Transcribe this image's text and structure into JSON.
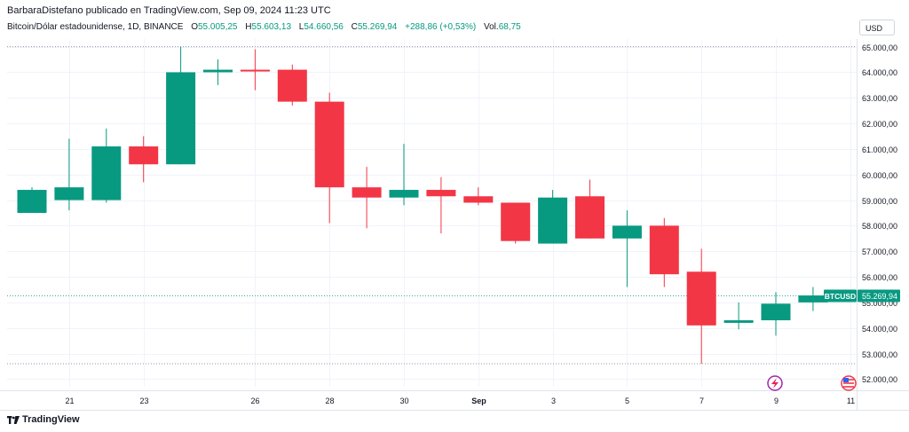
{
  "header": {
    "publisher": "BarbaraDistefano publicado en TradingView.com, Sep 09, 2024 11:23 UTC"
  },
  "legend": {
    "symbol": "Bitcoin/Dólar estadounidense, 1D, BINANCE",
    "open_label": "O",
    "open": "55.005,25",
    "high_label": "H",
    "high": "55.603,13",
    "low_label": "L",
    "low": "54.660,56",
    "close_label": "C",
    "close": "55.269,94",
    "change": "+288,86 (+0,53%)",
    "volume_label": "Vol.",
    "volume": "68,75"
  },
  "currency_button": "USD",
  "footer": {
    "brand": "TradingView"
  },
  "colors": {
    "up": "#089981",
    "down": "#f23645",
    "grid": "#f0f3fa",
    "axis_text": "#131722"
  },
  "chart_data": {
    "type": "candlestick",
    "symbol_tag": "BTCUSD",
    "last_price_label": "55.269,94",
    "ylim": [
      51700,
      65300
    ],
    "yticks": [
      {
        "value": 52000,
        "label": "52.000,00"
      },
      {
        "value": 53000,
        "label": "53.000,00"
      },
      {
        "value": 54000,
        "label": "54.000,00"
      },
      {
        "value": 55000,
        "label": "55.000,00"
      },
      {
        "value": 56000,
        "label": "56.000,00"
      },
      {
        "value": 57000,
        "label": "57.000,00"
      },
      {
        "value": 58000,
        "label": "58.000,00"
      },
      {
        "value": 59000,
        "label": "59.000,00"
      },
      {
        "value": 60000,
        "label": "60.000,00"
      },
      {
        "value": 61000,
        "label": "61.000,00"
      },
      {
        "value": 62000,
        "label": "62.000,00"
      },
      {
        "value": 63000,
        "label": "63.000,00"
      },
      {
        "value": 64000,
        "label": "64.000,00"
      },
      {
        "value": 65000,
        "label": "65.000,00"
      }
    ],
    "xticks": [
      {
        "index": 1,
        "label": "21"
      },
      {
        "index": 3,
        "label": "23"
      },
      {
        "index": 6,
        "label": "26"
      },
      {
        "index": 8,
        "label": "28"
      },
      {
        "index": 10,
        "label": "30"
      },
      {
        "index": 12,
        "label": "Sep"
      },
      {
        "index": 14,
        "label": "3"
      },
      {
        "index": 16,
        "label": "5"
      },
      {
        "index": 18,
        "label": "7"
      },
      {
        "index": 20,
        "label": "9"
      },
      {
        "index": 22,
        "label": "11"
      }
    ],
    "candles": [
      {
        "o": 58500,
        "h": 59500,
        "l": 58500,
        "c": 59400
      },
      {
        "o": 59000,
        "h": 61400,
        "l": 58600,
        "c": 59500
      },
      {
        "o": 59000,
        "h": 61800,
        "l": 58900,
        "c": 61100
      },
      {
        "o": 61100,
        "h": 61500,
        "l": 59700,
        "c": 60400
      },
      {
        "o": 60400,
        "h": 65000,
        "l": 60400,
        "c": 64000
      },
      {
        "o": 64000,
        "h": 64500,
        "l": 63500,
        "c": 64100
      },
      {
        "o": 64100,
        "h": 64900,
        "l": 63300,
        "c": 64050
      },
      {
        "o": 64100,
        "h": 64300,
        "l": 62700,
        "c": 62850
      },
      {
        "o": 62850,
        "h": 63200,
        "l": 58100,
        "c": 59500
      },
      {
        "o": 59500,
        "h": 60300,
        "l": 57900,
        "c": 59100
      },
      {
        "o": 59100,
        "h": 61200,
        "l": 58800,
        "c": 59400
      },
      {
        "o": 59400,
        "h": 59900,
        "l": 57700,
        "c": 59150
      },
      {
        "o": 59150,
        "h": 59500,
        "l": 58800,
        "c": 58900
      },
      {
        "o": 58900,
        "h": 58900,
        "l": 57300,
        "c": 57400
      },
      {
        "o": 57300,
        "h": 59400,
        "l": 57300,
        "c": 59100
      },
      {
        "o": 59150,
        "h": 59800,
        "l": 57500,
        "c": 57500
      },
      {
        "o": 57500,
        "h": 58600,
        "l": 55600,
        "c": 58000
      },
      {
        "o": 58000,
        "h": 58300,
        "l": 55600,
        "c": 56100
      },
      {
        "o": 56200,
        "h": 57100,
        "l": 52600,
        "c": 54100
      },
      {
        "o": 54200,
        "h": 55000,
        "l": 53950,
        "c": 54300
      },
      {
        "o": 54300,
        "h": 55400,
        "l": 53700,
        "c": 54950
      },
      {
        "o": 55000,
        "h": 55600,
        "l": 54660,
        "c": 55270
      }
    ],
    "high_line": 65000,
    "low_line": 52600,
    "grid": true
  }
}
